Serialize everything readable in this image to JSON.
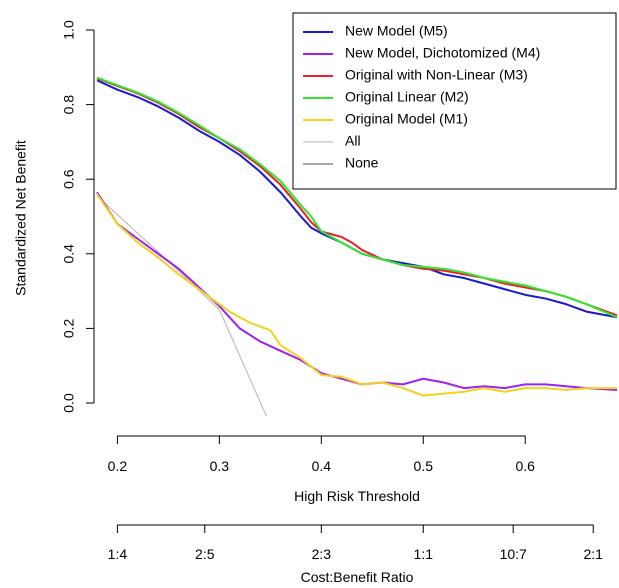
{
  "chart_data": {
    "type": "line",
    "title": "",
    "xlabel": "High Risk Threshold",
    "ylabel": "Standardized Net Benefit",
    "xlim": [
      0.18,
      0.69
    ],
    "ylim": [
      0.0,
      1.0
    ],
    "x_ticks": [
      0.2,
      0.3,
      0.4,
      0.5,
      0.6
    ],
    "x_tick_labels": [
      "0.2",
      "0.3",
      "0.4",
      "0.5",
      "0.6"
    ],
    "y_ticks": [
      0.0,
      0.2,
      0.4,
      0.6,
      0.8,
      1.0
    ],
    "y_tick_labels": [
      "0.0",
      "0.2",
      "0.4",
      "0.6",
      "0.8",
      "1.0"
    ],
    "secondary_axis": {
      "label": "Cost:Benefit Ratio",
      "ticks": [
        0.2,
        0.2857,
        0.4,
        0.5,
        0.5882,
        0.6667
      ],
      "tick_labels": [
        "1:4",
        "2:5",
        "2:3",
        "1:1",
        "10:7",
        "2:1"
      ]
    },
    "legend_position": "top-right",
    "grid": false,
    "series": [
      {
        "name": "New Model (M5)",
        "color": "#1a1acc",
        "points": [
          [
            0.18,
            0.865
          ],
          [
            0.2,
            0.84
          ],
          [
            0.22,
            0.82
          ],
          [
            0.24,
            0.795
          ],
          [
            0.26,
            0.765
          ],
          [
            0.28,
            0.73
          ],
          [
            0.3,
            0.7
          ],
          [
            0.32,
            0.665
          ],
          [
            0.34,
            0.62
          ],
          [
            0.36,
            0.565
          ],
          [
            0.38,
            0.5
          ],
          [
            0.39,
            0.47
          ],
          [
            0.4,
            0.455
          ],
          [
            0.42,
            0.43
          ],
          [
            0.44,
            0.4
          ],
          [
            0.46,
            0.385
          ],
          [
            0.48,
            0.375
          ],
          [
            0.5,
            0.365
          ],
          [
            0.52,
            0.345
          ],
          [
            0.54,
            0.335
          ],
          [
            0.56,
            0.32
          ],
          [
            0.58,
            0.305
          ],
          [
            0.6,
            0.29
          ],
          [
            0.62,
            0.28
          ],
          [
            0.64,
            0.265
          ],
          [
            0.66,
            0.245
          ],
          [
            0.69,
            0.23
          ]
        ]
      },
      {
        "name": "New Model, Dichotomized (M4)",
        "color": "#a020f0",
        "points": [
          [
            0.18,
            0.565
          ],
          [
            0.2,
            0.48
          ],
          [
            0.22,
            0.44
          ],
          [
            0.24,
            0.4
          ],
          [
            0.26,
            0.36
          ],
          [
            0.28,
            0.31
          ],
          [
            0.3,
            0.26
          ],
          [
            0.32,
            0.2
          ],
          [
            0.34,
            0.165
          ],
          [
            0.36,
            0.14
          ],
          [
            0.38,
            0.115
          ],
          [
            0.4,
            0.08
          ],
          [
            0.42,
            0.065
          ],
          [
            0.44,
            0.05
          ],
          [
            0.46,
            0.055
          ],
          [
            0.48,
            0.05
          ],
          [
            0.5,
            0.065
          ],
          [
            0.52,
            0.055
          ],
          [
            0.54,
            0.04
          ],
          [
            0.56,
            0.045
          ],
          [
            0.58,
            0.04
          ],
          [
            0.6,
            0.05
          ],
          [
            0.62,
            0.05
          ],
          [
            0.64,
            0.045
          ],
          [
            0.66,
            0.04
          ],
          [
            0.69,
            0.035
          ]
        ]
      },
      {
        "name": "Original with Non-Linear (M3)",
        "color": "#e8222a",
        "points": [
          [
            0.18,
            0.87
          ],
          [
            0.2,
            0.85
          ],
          [
            0.22,
            0.83
          ],
          [
            0.24,
            0.805
          ],
          [
            0.26,
            0.775
          ],
          [
            0.28,
            0.74
          ],
          [
            0.3,
            0.71
          ],
          [
            0.32,
            0.675
          ],
          [
            0.34,
            0.635
          ],
          [
            0.36,
            0.585
          ],
          [
            0.38,
            0.52
          ],
          [
            0.39,
            0.485
          ],
          [
            0.4,
            0.46
          ],
          [
            0.42,
            0.445
          ],
          [
            0.43,
            0.43
          ],
          [
            0.44,
            0.41
          ],
          [
            0.46,
            0.385
          ],
          [
            0.48,
            0.37
          ],
          [
            0.5,
            0.36
          ],
          [
            0.52,
            0.355
          ],
          [
            0.54,
            0.345
          ],
          [
            0.56,
            0.335
          ],
          [
            0.58,
            0.32
          ],
          [
            0.6,
            0.31
          ],
          [
            0.62,
            0.3
          ],
          [
            0.64,
            0.285
          ],
          [
            0.66,
            0.265
          ],
          [
            0.69,
            0.235
          ]
        ]
      },
      {
        "name": "Original Linear (M2)",
        "color": "#2ee82e",
        "points": [
          [
            0.18,
            0.872
          ],
          [
            0.2,
            0.852
          ],
          [
            0.22,
            0.832
          ],
          [
            0.24,
            0.808
          ],
          [
            0.26,
            0.778
          ],
          [
            0.28,
            0.745
          ],
          [
            0.3,
            0.71
          ],
          [
            0.32,
            0.68
          ],
          [
            0.34,
            0.64
          ],
          [
            0.36,
            0.595
          ],
          [
            0.38,
            0.53
          ],
          [
            0.39,
            0.5
          ],
          [
            0.4,
            0.46
          ],
          [
            0.42,
            0.43
          ],
          [
            0.44,
            0.4
          ],
          [
            0.46,
            0.385
          ],
          [
            0.48,
            0.37
          ],
          [
            0.5,
            0.365
          ],
          [
            0.52,
            0.36
          ],
          [
            0.54,
            0.35
          ],
          [
            0.56,
            0.335
          ],
          [
            0.58,
            0.325
          ],
          [
            0.6,
            0.315
          ],
          [
            0.62,
            0.3
          ],
          [
            0.64,
            0.285
          ],
          [
            0.66,
            0.265
          ],
          [
            0.69,
            0.23
          ]
        ]
      },
      {
        "name": "Original Model (M1)",
        "color": "#f2d21a",
        "points": [
          [
            0.18,
            0.56
          ],
          [
            0.2,
            0.48
          ],
          [
            0.22,
            0.43
          ],
          [
            0.24,
            0.39
          ],
          [
            0.26,
            0.345
          ],
          [
            0.28,
            0.305
          ],
          [
            0.3,
            0.265
          ],
          [
            0.31,
            0.245
          ],
          [
            0.32,
            0.23
          ],
          [
            0.33,
            0.215
          ],
          [
            0.34,
            0.205
          ],
          [
            0.35,
            0.195
          ],
          [
            0.36,
            0.155
          ],
          [
            0.38,
            0.12
          ],
          [
            0.4,
            0.075
          ],
          [
            0.42,
            0.07
          ],
          [
            0.44,
            0.05
          ],
          [
            0.46,
            0.055
          ],
          [
            0.48,
            0.04
          ],
          [
            0.5,
            0.02
          ],
          [
            0.52,
            0.025
          ],
          [
            0.54,
            0.03
          ],
          [
            0.56,
            0.04
          ],
          [
            0.58,
            0.03
          ],
          [
            0.6,
            0.04
          ],
          [
            0.62,
            0.04
          ],
          [
            0.64,
            0.035
          ],
          [
            0.66,
            0.04
          ],
          [
            0.69,
            0.04
          ]
        ]
      },
      {
        "name": "All",
        "color": "#b5b5b5",
        "points": [
          [
            0.18,
            0.555
          ],
          [
            0.25,
            0.38
          ],
          [
            0.3,
            0.25
          ],
          [
            0.355,
            -0.09
          ]
        ]
      },
      {
        "name": "None",
        "color": "#505050",
        "points": []
      }
    ]
  }
}
